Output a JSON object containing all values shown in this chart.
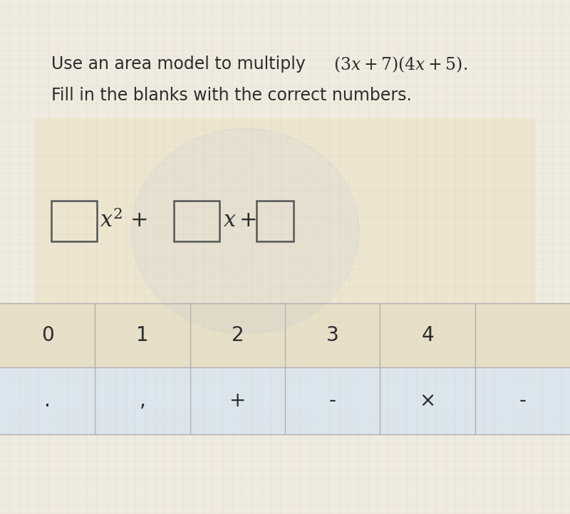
{
  "bg_color": "#f0ebe0",
  "text_color": "#2d2d2d",
  "title_line1_plain": "Use an area model to multiply ",
  "title_line1_math": "$(3x+7)(4x+5)$.",
  "title_line2": "Fill in the blanks with the correct numbers.",
  "title_fontsize": 17,
  "math_fontsize": 17,
  "grid_color": "#d8ceb8",
  "mid_area_color": "#ede5d0",
  "box_edgecolor": "#555555",
  "numbers_row_bg": "#e8dfc8",
  "symbols_row_bg": "#dce6ee",
  "divider_color": "#b0b0b0",
  "numbers": [
    "0",
    "1",
    "2",
    "3",
    "4"
  ],
  "symbols": [
    ".",
    ",",
    "+",
    "-",
    "×",
    "-"
  ],
  "formula_fontsize": 22,
  "number_fontsize": 20,
  "symbol_fontsize": 20,
  "n_cols": 6,
  "faint_circle_color": "#a0b8d0",
  "faint_circle_alpha": 0.1
}
